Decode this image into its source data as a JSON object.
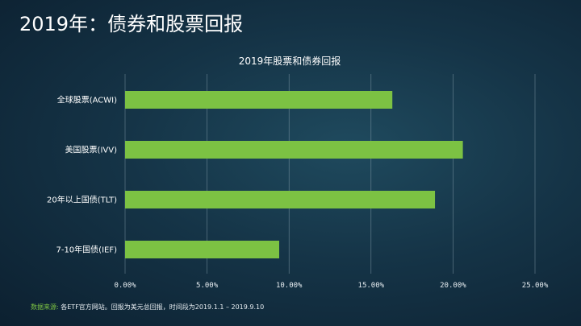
{
  "slide": {
    "title": "2019年：债券和股票回报"
  },
  "chart_data": {
    "type": "bar",
    "orientation": "horizontal",
    "title": "2019年股票和债券回报",
    "categories": [
      "全球股票(ACWI)",
      "美国股票(IVV)",
      "20年以上国债(TLT)",
      "7-10年国债(IEF)"
    ],
    "values": [
      16.3,
      20.6,
      18.9,
      9.4
    ],
    "value_unit": "%",
    "xlim": [
      0,
      25
    ],
    "ticks": [
      0,
      5,
      10,
      15,
      20,
      25
    ],
    "tick_labels": [
      "0.00%",
      "5.00%",
      "10.00%",
      "15.00%",
      "20.00%",
      "25.00%"
    ],
    "bar_color": "#7cc243",
    "grid": true,
    "xlabel": "",
    "ylabel": ""
  },
  "footer": {
    "label": "数据来源:",
    "text": "各ETF官方网站。回报为美元总回报，时间段为2019.1.1 – 2019.9.10"
  },
  "colors": {
    "accent": "#7cc243",
    "text": "#ffffff",
    "gridline": "#8fa6b4"
  }
}
